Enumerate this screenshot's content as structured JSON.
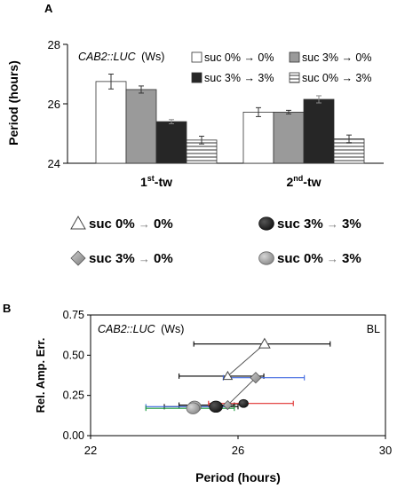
{
  "colors": {
    "white_fill": "#ffffff",
    "gray_fill": "#9a9a9a",
    "dark_fill": "#262626",
    "stripe_fill": "#c9c9c9",
    "blue": "#4169e1",
    "red": "#e0302f",
    "green": "#1a9a3c",
    "black": "#000000"
  },
  "chart_data": [
    {
      "panel": "A",
      "type": "bar",
      "title": "CAB2::LUC (Ws)",
      "title_italic": "CAB2::LUC",
      "title_rest": "(Ws)",
      "ylabel": "Period (hours)",
      "ylim": [
        24,
        28
      ],
      "yticks": [
        "24",
        "26",
        "28"
      ],
      "categories": [
        {
          "base": "1",
          "sup": "st",
          "rest": "-tw"
        },
        {
          "base": "2",
          "sup": "nd",
          "rest": "-tw"
        }
      ],
      "legend_position": "top-right",
      "series": [
        {
          "name": "suc 0% → 0%",
          "fill": "white",
          "values": [
            26.75,
            25.72
          ],
          "errors": [
            0.25,
            0.15
          ]
        },
        {
          "name": "suc 3% → 0%",
          "fill": "gray",
          "values": [
            26.48,
            25.72
          ],
          "errors": [
            0.12,
            0.06
          ]
        },
        {
          "name": "suc 3% → 3%",
          "fill": "dark",
          "values": [
            25.4,
            26.15
          ],
          "errors": [
            0.07,
            0.12
          ]
        },
        {
          "name": "suc 0% → 3%",
          "fill": "stripes",
          "values": [
            24.78,
            24.82
          ],
          "errors": [
            0.13,
            0.13
          ]
        }
      ]
    },
    {
      "panel": "B",
      "type": "scatter",
      "title": "CAB2::LUC (Ws)",
      "title_italic": "CAB2::LUC",
      "title_rest": "(Ws)",
      "corner_label": "BL",
      "xlabel": "Period (hours)",
      "ylabel": "Rel. Amp. Err.",
      "xlim": [
        22,
        30
      ],
      "ylim": [
        0,
        0.75
      ],
      "xticks": [
        "22",
        "26",
        "30"
      ],
      "yticks": [
        "0.00",
        "0.25",
        "0.50",
        "0.75"
      ],
      "legend": [
        {
          "marker": "triangle",
          "prefix": "suc 0% ",
          "arrow": "→",
          "suffix": " 0%"
        },
        {
          "marker": "dot_dark",
          "prefix": "suc 3% ",
          "arrow": "→",
          "suffix": " 3%"
        },
        {
          "marker": "diamond",
          "prefix": "suc 3% ",
          "arrow": "→",
          "suffix": " 0%"
        },
        {
          "marker": "dot_gray",
          "prefix": "suc 0% ",
          "arrow": "→",
          "suffix": " 3%"
        }
      ],
      "series": [
        {
          "marker": "triangle",
          "points": [
            {
              "x": 26.72,
              "y": 0.57,
              "xerr_low": 24.8,
              "xerr_high": 28.5,
              "color": "black"
            },
            {
              "x": 25.72,
              "y": 0.37,
              "xerr_low": 24.4,
              "xerr_high": 26.7,
              "color": "black"
            }
          ]
        },
        {
          "marker": "diamond",
          "points": [
            {
              "x": 26.48,
              "y": 0.36,
              "xerr_low": 25.6,
              "xerr_high": 27.8,
              "color": "blue"
            },
            {
              "x": 25.72,
              "y": 0.19,
              "xerr_low": 24.4,
              "xerr_high": 25.9,
              "color": "black"
            }
          ]
        },
        {
          "marker": "dot_dark",
          "points": [
            {
              "x": 26.15,
              "y": 0.2,
              "xerr_low": 25.2,
              "xerr_high": 27.5,
              "color": "red"
            },
            {
              "x": 25.4,
              "y": 0.18,
              "xerr_low": 24.0,
              "xerr_high": 26.0,
              "color": "black"
            }
          ]
        },
        {
          "marker": "dot_gray",
          "points": [
            {
              "x": 24.82,
              "y": 0.18,
              "xerr_low": 23.5,
              "xerr_high": 25.7,
              "color": "blue"
            },
            {
              "x": 24.78,
              "y": 0.17,
              "xerr_low": 23.5,
              "xerr_high": 25.9,
              "color": "green"
            }
          ]
        }
      ]
    }
  ],
  "middle_legend": [
    {
      "marker": "triangle",
      "prefix": "suc 0% ",
      "arrow": "→",
      "suffix": " 0%"
    },
    {
      "marker": "dot_dark",
      "prefix": "suc 3% ",
      "arrow": "→",
      "suffix": " 3%"
    },
    {
      "marker": "diamond",
      "prefix": "suc 3% ",
      "arrow": "→",
      "suffix": " 0%"
    },
    {
      "marker": "dot_gray",
      "prefix": "suc 0% ",
      "arrow": "→",
      "suffix": " 3%"
    }
  ]
}
